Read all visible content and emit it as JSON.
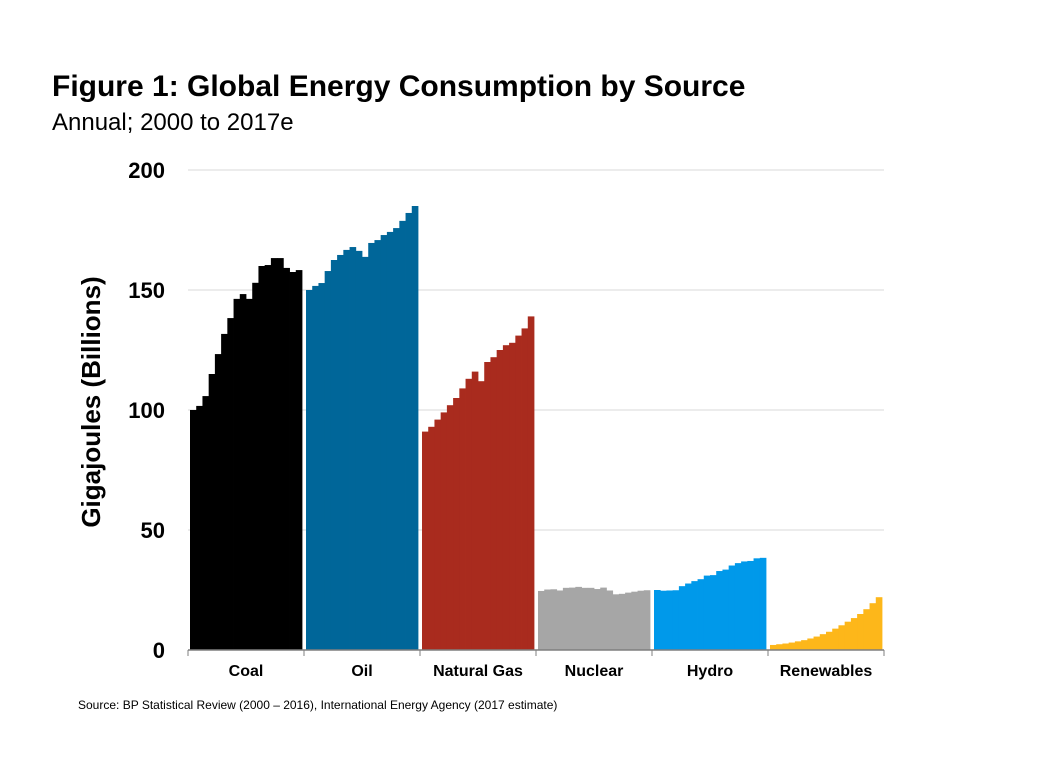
{
  "chart_data": {
    "type": "bar",
    "title": "Figure 1: Global Energy Consumption by Source",
    "subtitle": "Annual; 2000 to 2017e",
    "y_label": "Gigajoules (Billions)",
    "source": "Source: BP Statistical Review (2000 – 2016), International Energy Agency (2017 estimate)",
    "ylim": [
      0,
      200
    ],
    "yticks": [
      0,
      50,
      100,
      150,
      200
    ],
    "grid": true,
    "series": [
      {
        "name": "Coal",
        "color": "#000000",
        "values": [
          100,
          101.7,
          105.8,
          115,
          123.3,
          131.7,
          138.3,
          146.3,
          148.3,
          146.3,
          153,
          160,
          160.4,
          163.3,
          163.3,
          159.2,
          157.5,
          158.3
        ]
      },
      {
        "name": "Oil",
        "color": "#006699",
        "values": [
          150,
          151.7,
          152.9,
          157.9,
          162.5,
          164.6,
          166.7,
          167.9,
          166.3,
          163.8,
          169.6,
          170.8,
          172.9,
          174.2,
          175.8,
          178.8,
          182.1,
          185
        ]
      },
      {
        "name": "Natural Gas",
        "color": "#a92b1e",
        "values": [
          91,
          93,
          96,
          99,
          102,
          105,
          109,
          113,
          116,
          112,
          120,
          122,
          125,
          127,
          128,
          131,
          134,
          139
        ]
      },
      {
        "name": "Nuclear",
        "color": "#a6a6a6",
        "values": [
          24.6,
          25.2,
          25.3,
          24.8,
          25.9,
          26,
          26.3,
          25.9,
          25.9,
          25.4,
          26,
          24.8,
          23.2,
          23.4,
          23.9,
          24.3,
          24.7,
          24.9
        ]
      },
      {
        "name": "Hydro",
        "color": "#0099ea",
        "values": [
          25,
          24.7,
          24.8,
          24.9,
          26.6,
          27.7,
          28.7,
          29.5,
          31,
          31.2,
          32.9,
          33.5,
          35.2,
          36.2,
          36.9,
          37.1,
          38.2,
          38.4
        ]
      },
      {
        "name": "Renewables",
        "color": "#fdb71a",
        "values": [
          2.1,
          2.4,
          2.7,
          3.1,
          3.6,
          4.1,
          4.8,
          5.6,
          6.6,
          7.6,
          8.9,
          10.3,
          11.8,
          13.3,
          15,
          17,
          19.5,
          22
        ]
      }
    ]
  }
}
